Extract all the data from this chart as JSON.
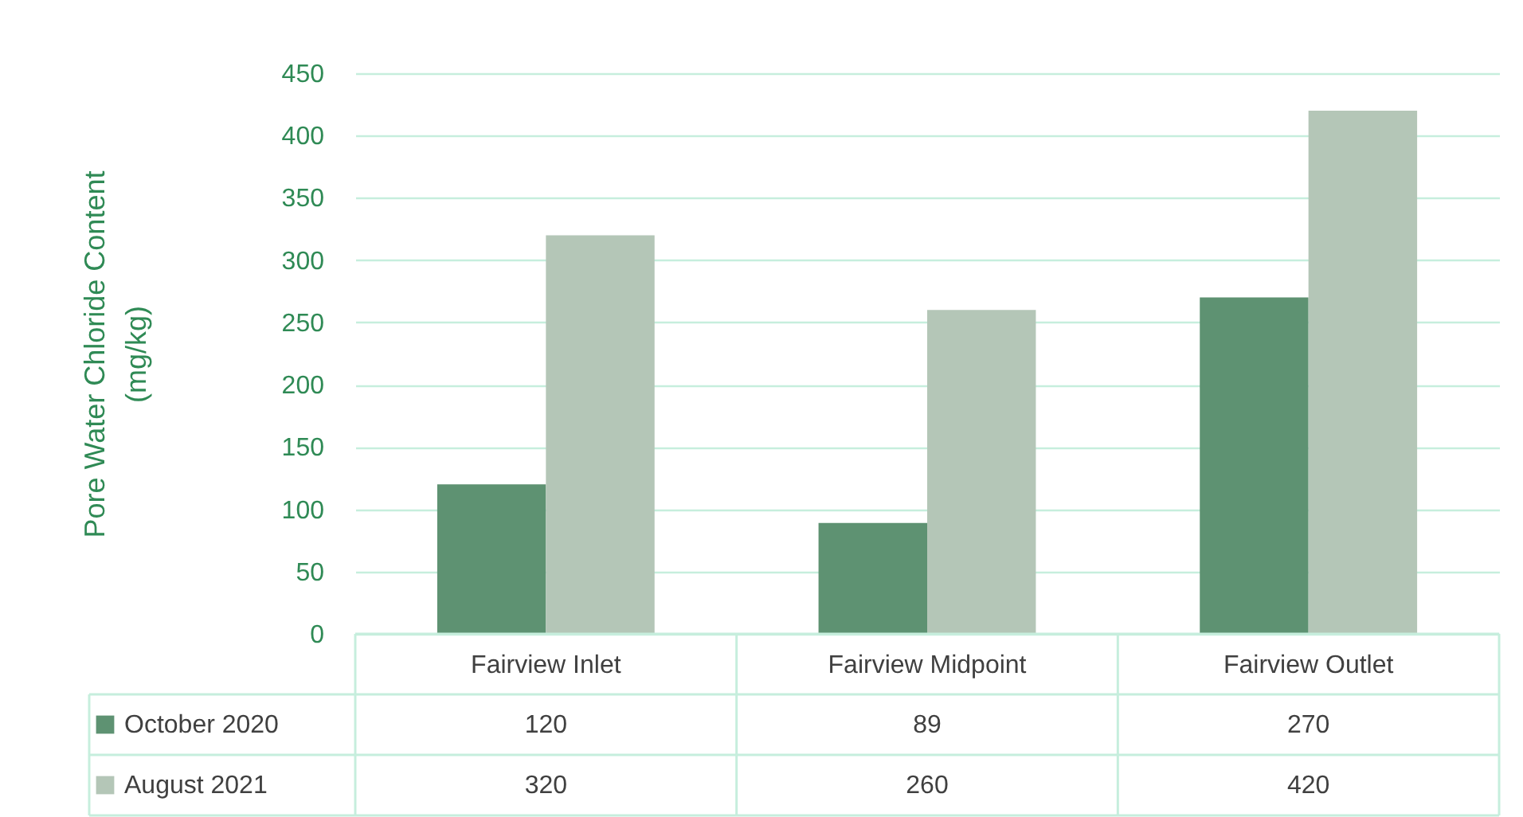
{
  "chart_data": {
    "type": "bar",
    "ylabel": "Pore Water Chloride Content (mg/kg)",
    "categories": [
      "Fairview Inlet",
      "Fairview Midpoint",
      "Fairview Outlet"
    ],
    "series": [
      {
        "name": "October 2020",
        "color": "#5e9272",
        "values": [
          120,
          89,
          270
        ]
      },
      {
        "name": "August 2021",
        "color": "#b4c6b7",
        "values": [
          320,
          260,
          420
        ]
      }
    ],
    "ylim": [
      0,
      450
    ],
    "yticks": [
      0,
      50,
      100,
      150,
      200,
      250,
      300,
      350,
      400,
      450
    ],
    "grid": "y",
    "legend": "bottom",
    "data_labels": true
  }
}
